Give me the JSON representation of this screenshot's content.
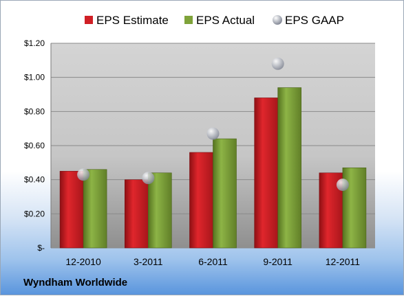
{
  "company": "Wyndham Worldwide",
  "colors": {
    "estimate": "#d01f25",
    "actual": "#7fa33a",
    "gaap": "#b9bcc4"
  },
  "chart_data": {
    "type": "bar",
    "categories": [
      "12-2010",
      "3-2011",
      "6-2011",
      "9-2011",
      "12-2011"
    ],
    "series": [
      {
        "name": "EPS Estimate",
        "values": [
          0.45,
          0.4,
          0.56,
          0.88,
          0.44
        ]
      },
      {
        "name": "EPS Actual",
        "values": [
          0.46,
          0.44,
          0.64,
          0.94,
          0.47
        ]
      },
      {
        "name": "EPS GAAP",
        "marker": "sphere",
        "values": [
          0.43,
          0.41,
          0.67,
          1.08,
          0.37
        ]
      }
    ],
    "ylim": [
      0,
      1.2
    ],
    "yticks": [
      0,
      0.2,
      0.4,
      0.6,
      0.8,
      1.0,
      1.2
    ],
    "ytick_labels": [
      "$-",
      "$0.20",
      "$0.40",
      "$0.60",
      "$0.80",
      "$1.00",
      "$1.20"
    ],
    "grid": true,
    "legend": "top"
  }
}
